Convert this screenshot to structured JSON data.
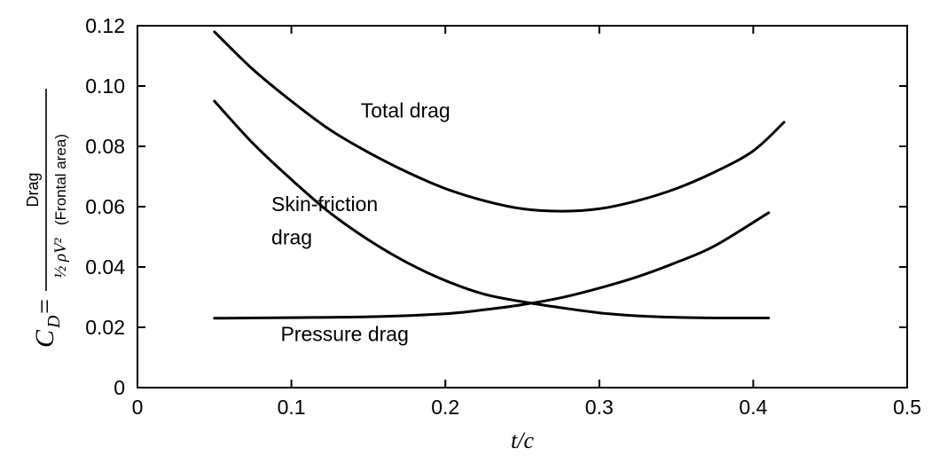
{
  "chart_data": {
    "type": "line",
    "title": "",
    "xlabel": "t/c",
    "ylabel": {
      "symbol": "C",
      "subscript": "D",
      "equals": "=",
      "numerator": "Drag",
      "denominator_coef": "½ ρV²",
      "denominator_area": "(Frontal area)"
    },
    "xlim": [
      0,
      0.5
    ],
    "ylim": [
      0,
      0.12
    ],
    "xticks": [
      0,
      0.1,
      0.2,
      0.3,
      0.4,
      0.5
    ],
    "xtick_labels": [
      "0",
      "0.1",
      "0.2",
      "0.3",
      "0.4",
      "0.5"
    ],
    "yticks": [
      0,
      0.02,
      0.04,
      0.06,
      0.08,
      0.1,
      0.12
    ],
    "ytick_labels": [
      "0",
      "0.02",
      "0.04",
      "0.06",
      "0.08",
      "0.10",
      "0.12"
    ],
    "grid": false,
    "legend": "none",
    "series": [
      {
        "name": "Total drag",
        "x": [
          0.05,
          0.075,
          0.1,
          0.125,
          0.15,
          0.175,
          0.2,
          0.225,
          0.25,
          0.275,
          0.3,
          0.325,
          0.35,
          0.375,
          0.4,
          0.42
        ],
        "y": [
          0.118,
          0.1055,
          0.095,
          0.0855,
          0.078,
          0.0715,
          0.066,
          0.062,
          0.0593,
          0.0585,
          0.0593,
          0.062,
          0.066,
          0.0715,
          0.0785,
          0.088
        ]
      },
      {
        "name": "Skin-friction drag",
        "x": [
          0.05,
          0.075,
          0.1,
          0.125,
          0.15,
          0.175,
          0.2,
          0.225,
          0.25,
          0.275,
          0.3,
          0.325,
          0.35,
          0.375,
          0.41
        ],
        "y": [
          0.095,
          0.081,
          0.069,
          0.058,
          0.049,
          0.0415,
          0.0355,
          0.031,
          0.0285,
          0.0265,
          0.0248,
          0.0238,
          0.0233,
          0.0231,
          0.0231
        ]
      },
      {
        "name": "Pressure drag",
        "x": [
          0.05,
          0.1,
          0.15,
          0.2,
          0.225,
          0.25,
          0.275,
          0.3,
          0.325,
          0.35,
          0.375,
          0.41
        ],
        "y": [
          0.023,
          0.0232,
          0.0235,
          0.0245,
          0.0258,
          0.0275,
          0.0298,
          0.033,
          0.0368,
          0.0415,
          0.047,
          0.058
        ]
      }
    ],
    "annotations": [
      {
        "text": "Total drag",
        "x": 0.145,
        "y": 0.0895
      },
      {
        "text": "Skin-friction",
        "x": 0.087,
        "y": 0.0585
      },
      {
        "text": "drag",
        "x": 0.087,
        "y": 0.0475
      },
      {
        "text": "Pressure drag",
        "x": 0.093,
        "y": 0.0155
      }
    ]
  }
}
